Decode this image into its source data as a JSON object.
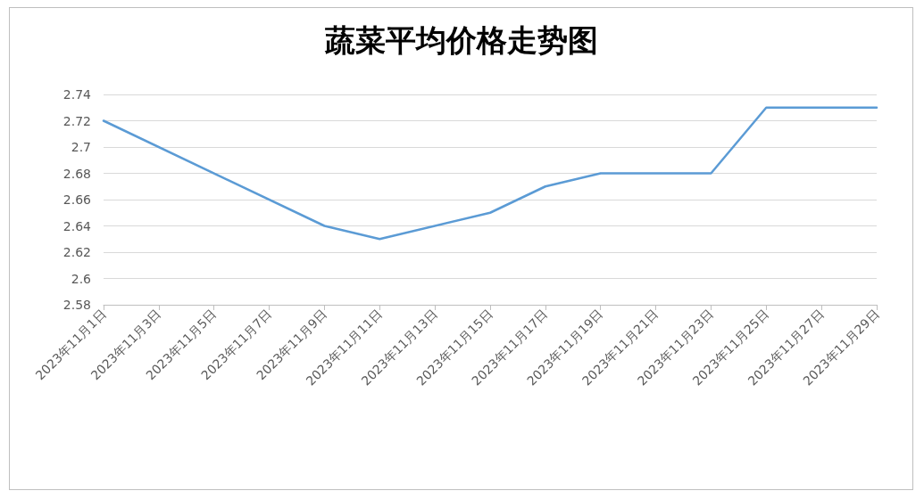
{
  "chart_data": {
    "type": "line",
    "title": "蔬菜平均价格走势图",
    "x": [
      "2023-11-01",
      "2023-11-09",
      "2023-11-11",
      "2023-11-15",
      "2023-11-17",
      "2023-11-19",
      "2023-11-23",
      "2023-11-25",
      "2023-11-29"
    ],
    "series": [
      {
        "color": "#5b9bd5",
        "values": [
          2.72,
          2.64,
          2.63,
          2.65,
          2.67,
          2.68,
          2.68,
          2.73,
          2.73
        ]
      }
    ],
    "xlim": [
      "2023-11-01",
      "2023-11-29"
    ],
    "xticks": [
      {
        "value": "2023-11-01",
        "label": "2023年11月1日"
      },
      {
        "value": "2023-11-03",
        "label": "2023年11月3日"
      },
      {
        "value": "2023-11-05",
        "label": "2023年11月5日"
      },
      {
        "value": "2023-11-07",
        "label": "2023年11月7日"
      },
      {
        "value": "2023-11-09",
        "label": "2023年11月9日"
      },
      {
        "value": "2023-11-11",
        "label": "2023年11月11日"
      },
      {
        "value": "2023-11-13",
        "label": "2023年11月13日"
      },
      {
        "value": "2023-11-15",
        "label": "2023年11月15日"
      },
      {
        "value": "2023-11-17",
        "label": "2023年11月17日"
      },
      {
        "value": "2023-11-19",
        "label": "2023年11月19日"
      },
      {
        "value": "2023-11-21",
        "label": "2023年11月21日"
      },
      {
        "value": "2023-11-23",
        "label": "2023年11月23日"
      },
      {
        "value": "2023-11-25",
        "label": "2023年11月25日"
      },
      {
        "value": "2023-11-27",
        "label": "2023年11月27日"
      },
      {
        "value": "2023-11-29",
        "label": "2023年11月29日"
      }
    ],
    "ylim": [
      2.58,
      2.74
    ],
    "yticks": [
      2.58,
      2.6,
      2.62,
      2.64,
      2.66,
      2.68,
      2.7,
      2.72,
      2.74
    ],
    "grid": "y",
    "marker": "none",
    "line_style": "solid"
  }
}
